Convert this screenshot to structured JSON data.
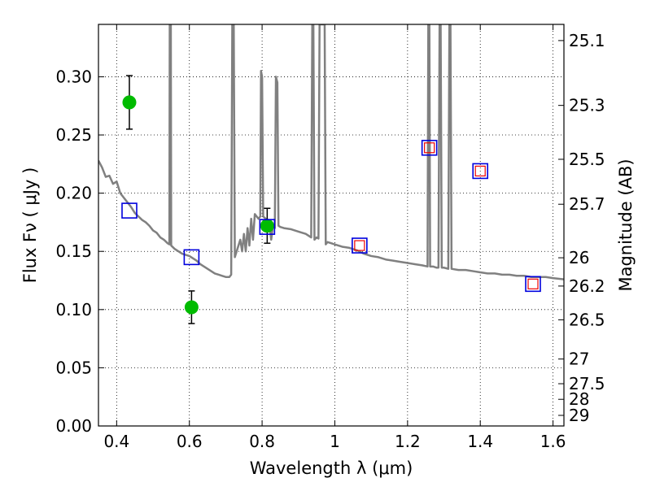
{
  "chart_data": {
    "type": "scatter",
    "title": "",
    "xlabel": "Wavelength  λ (μm)",
    "ylabel": "Flux  Fν  ( μJy )",
    "y2label": "Magnitude (AB)",
    "xlim": [
      0.35,
      1.63
    ],
    "ylim": [
      0.0,
      0.345
    ],
    "grid": true,
    "x_ticks": [
      0.4,
      0.6,
      0.8,
      1.0,
      1.2,
      1.4,
      1.6
    ],
    "x_tick_labels": [
      "0.4",
      "0.6",
      "0.8",
      "1",
      "1.2",
      "1.4",
      "1.6"
    ],
    "y_ticks": [
      0.0,
      0.05,
      0.1,
      0.15,
      0.2,
      0.25,
      0.3
    ],
    "y_tick_labels": [
      "0.00",
      "0.05",
      "0.10",
      "0.15",
      "0.20",
      "0.25",
      "0.30"
    ],
    "y2_ticks": [
      {
        "label": "25.1",
        "flux": 0.3311
      },
      {
        "label": "25.3",
        "flux": 0.2754
      },
      {
        "label": "25.5",
        "flux": 0.2291
      },
      {
        "label": "25.7",
        "flux": 0.1905
      },
      {
        "label": "26",
        "flux": 0.1445
      },
      {
        "label": "26.2",
        "flux": 0.1202
      },
      {
        "label": "26.5",
        "flux": 0.0912
      },
      {
        "label": "27",
        "flux": 0.0575
      },
      {
        "label": "27.5",
        "flux": 0.0363
      },
      {
        "label": "28",
        "flux": 0.0229
      },
      {
        "label": "29",
        "flux": 0.0091
      }
    ],
    "series": [
      {
        "kind": "line",
        "color": "#808080",
        "points": [
          [
            0.35,
            0.228
          ],
          [
            0.36,
            0.222
          ],
          [
            0.37,
            0.214
          ],
          [
            0.38,
            0.215
          ],
          [
            0.39,
            0.208
          ],
          [
            0.4,
            0.21
          ],
          [
            0.41,
            0.2
          ],
          [
            0.42,
            0.196
          ],
          [
            0.43,
            0.192
          ],
          [
            0.44,
            0.188
          ],
          [
            0.45,
            0.183
          ],
          [
            0.46,
            0.18
          ],
          [
            0.47,
            0.177
          ],
          [
            0.48,
            0.175
          ],
          [
            0.49,
            0.172
          ],
          [
            0.5,
            0.168
          ],
          [
            0.51,
            0.166
          ],
          [
            0.52,
            0.162
          ],
          [
            0.53,
            0.16
          ],
          [
            0.54,
            0.157
          ],
          [
            0.545,
            0.156
          ],
          [
            0.546,
            0.345
          ],
          [
            0.549,
            0.345
          ],
          [
            0.55,
            0.155
          ],
          [
            0.56,
            0.152
          ],
          [
            0.57,
            0.15
          ],
          [
            0.58,
            0.148
          ],
          [
            0.59,
            0.147
          ],
          [
            0.6,
            0.146
          ],
          [
            0.61,
            0.144
          ],
          [
            0.62,
            0.142
          ],
          [
            0.63,
            0.139
          ],
          [
            0.64,
            0.137
          ],
          [
            0.65,
            0.135
          ],
          [
            0.66,
            0.133
          ],
          [
            0.67,
            0.131
          ],
          [
            0.68,
            0.13
          ],
          [
            0.69,
            0.129
          ],
          [
            0.7,
            0.128
          ],
          [
            0.71,
            0.128
          ],
          [
            0.715,
            0.13
          ],
          [
            0.718,
            0.345
          ],
          [
            0.722,
            0.345
          ],
          [
            0.725,
            0.145
          ],
          [
            0.73,
            0.15
          ],
          [
            0.74,
            0.16
          ],
          [
            0.745,
            0.15
          ],
          [
            0.75,
            0.165
          ],
          [
            0.755,
            0.15
          ],
          [
            0.76,
            0.17
          ],
          [
            0.765,
            0.155
          ],
          [
            0.77,
            0.178
          ],
          [
            0.775,
            0.16
          ],
          [
            0.78,
            0.182
          ],
          [
            0.79,
            0.178
          ],
          [
            0.795,
            0.18
          ],
          [
            0.797,
            0.305
          ],
          [
            0.8,
            0.3
          ],
          [
            0.803,
            0.18
          ],
          [
            0.81,
            0.178
          ],
          [
            0.82,
            0.175
          ],
          [
            0.825,
            0.16
          ],
          [
            0.83,
            0.172
          ],
          [
            0.835,
            0.17
          ],
          [
            0.838,
            0.3
          ],
          [
            0.842,
            0.295
          ],
          [
            0.845,
            0.172
          ],
          [
            0.85,
            0.171
          ],
          [
            0.86,
            0.17
          ],
          [
            0.88,
            0.169
          ],
          [
            0.9,
            0.167
          ],
          [
            0.92,
            0.165
          ],
          [
            0.935,
            0.162
          ],
          [
            0.938,
            0.345
          ],
          [
            0.941,
            0.345
          ],
          [
            0.944,
            0.16
          ],
          [
            0.95,
            0.162
          ],
          [
            0.955,
            0.161
          ],
          [
            0.958,
            0.345
          ],
          [
            0.962,
            0.345
          ],
          [
            0.965,
            0.345
          ],
          [
            0.968,
            0.345
          ],
          [
            0.972,
            0.345
          ],
          [
            0.975,
            0.156
          ],
          [
            0.98,
            0.158
          ],
          [
            0.99,
            0.157
          ],
          [
            1.0,
            0.156
          ],
          [
            1.02,
            0.154
          ],
          [
            1.04,
            0.153
          ],
          [
            1.06,
            0.151
          ],
          [
            1.08,
            0.148
          ],
          [
            1.1,
            0.146
          ],
          [
            1.12,
            0.145
          ],
          [
            1.14,
            0.143
          ],
          [
            1.16,
            0.142
          ],
          [
            1.18,
            0.141
          ],
          [
            1.2,
            0.14
          ],
          [
            1.22,
            0.139
          ],
          [
            1.24,
            0.138
          ],
          [
            1.255,
            0.137
          ],
          [
            1.257,
            0.345
          ],
          [
            1.26,
            0.345
          ],
          [
            1.262,
            0.137
          ],
          [
            1.27,
            0.137
          ],
          [
            1.28,
            0.136
          ],
          [
            1.285,
            0.136
          ],
          [
            1.288,
            0.345
          ],
          [
            1.291,
            0.345
          ],
          [
            1.294,
            0.136
          ],
          [
            1.3,
            0.136
          ],
          [
            1.312,
            0.135
          ],
          [
            1.315,
            0.345
          ],
          [
            1.318,
            0.345
          ],
          [
            1.321,
            0.135
          ],
          [
            1.34,
            0.134
          ],
          [
            1.36,
            0.134
          ],
          [
            1.38,
            0.133
          ],
          [
            1.4,
            0.132
          ],
          [
            1.42,
            0.131
          ],
          [
            1.44,
            0.131
          ],
          [
            1.46,
            0.13
          ],
          [
            1.48,
            0.13
          ],
          [
            1.5,
            0.129
          ],
          [
            1.52,
            0.129
          ],
          [
            1.54,
            0.128
          ],
          [
            1.56,
            0.128
          ],
          [
            1.58,
            0.128
          ],
          [
            1.6,
            0.127
          ],
          [
            1.63,
            0.126
          ]
        ]
      },
      {
        "kind": "points",
        "marker": "circle",
        "color": "#00bb00",
        "points": [
          {
            "x": 0.435,
            "y": 0.278,
            "err": 0.023
          },
          {
            "x": 0.606,
            "y": 0.102,
            "err": 0.014
          },
          {
            "x": 0.814,
            "y": 0.172,
            "err": 0.015
          }
        ]
      },
      {
        "kind": "points",
        "marker": "square",
        "color": "#0000dd",
        "points": [
          {
            "x": 0.435,
            "y": 0.185
          },
          {
            "x": 0.606,
            "y": 0.145
          },
          {
            "x": 0.814,
            "y": 0.171
          },
          {
            "x": 1.068,
            "y": 0.155
          },
          {
            "x": 1.26,
            "y": 0.239
          },
          {
            "x": 1.4,
            "y": 0.219
          },
          {
            "x": 1.545,
            "y": 0.122
          }
        ]
      },
      {
        "kind": "points",
        "marker": "square-small",
        "color": "#ee0000",
        "points": [
          {
            "x": 1.068,
            "y": 0.155
          },
          {
            "x": 1.26,
            "y": 0.239
          },
          {
            "x": 1.4,
            "y": 0.219
          },
          {
            "x": 1.545,
            "y": 0.122
          }
        ]
      }
    ]
  }
}
